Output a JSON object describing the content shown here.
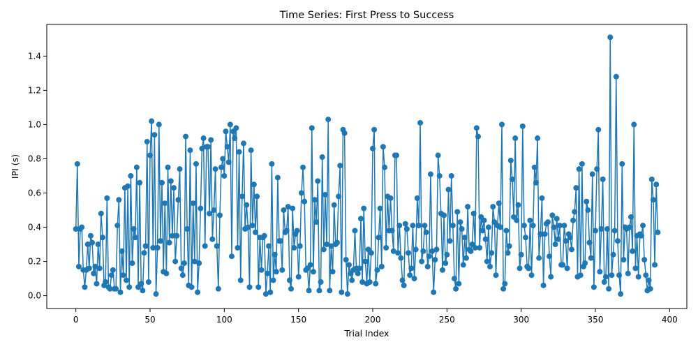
{
  "chart_data": {
    "type": "line",
    "title": "Time Series: First Press to Success",
    "xlabel": "Trial Index",
    "ylabel": "IPI (s)",
    "xlim": [
      -19.6,
      411.6
    ],
    "ylim": [
      -0.075,
      1.585
    ],
    "xticks": [
      0,
      50,
      100,
      150,
      200,
      250,
      300,
      350,
      400
    ],
    "xtick_labels": [
      "0",
      "50",
      "100",
      "150",
      "200",
      "250",
      "300",
      "350",
      "400"
    ],
    "yticks": [
      0.0,
      0.2,
      0.4,
      0.6,
      0.8,
      1.0,
      1.2,
      1.4
    ],
    "ytick_labels": [
      "0.0",
      "0.2",
      "0.4",
      "0.6",
      "0.8",
      "1.0",
      "1.2",
      "1.4"
    ],
    "grid": false,
    "legend": "none",
    "series": [
      {
        "color": "#1f77b4",
        "marker": "circle",
        "x_start": 0,
        "x_step": 1,
        "values": [
          0.39,
          0.77,
          0.17,
          0.39,
          0.4,
          0.15,
          0.05,
          0.15,
          0.3,
          0.16,
          0.35,
          0.31,
          0.13,
          0.17,
          0.07,
          0.3,
          0.16,
          0.48,
          0.34,
          0.06,
          0.08,
          0.57,
          0.05,
          0.04,
          0.12,
          0.15,
          0.04,
          0.04,
          0.41,
          0.56,
          0.02,
          0.26,
          0.12,
          0.63,
          0.09,
          0.64,
          0.05,
          0.7,
          0.19,
          0.39,
          0.34,
          0.75,
          0.05,
          0.66,
          0.07,
          0.03,
          0.25,
          0.29,
          0.9,
          0.08,
          0.82,
          1.02,
          0.28,
          0.94,
          0.01,
          0.28,
          1.0,
          0.32,
          0.66,
          0.14,
          0.54,
          0.13,
          0.75,
          0.31,
          0.67,
          0.35,
          0.63,
          0.2,
          0.35,
          0.56,
          0.74,
          0.16,
          0.12,
          0.19,
          0.93,
          0.39,
          0.06,
          0.85,
          0.05,
          0.54,
          0.2,
          0.77,
          0.02,
          0.19,
          0.51,
          0.86,
          0.92,
          0.29,
          0.87,
          0.87,
          0.48,
          0.91,
          0.33,
          0.5,
          0.74,
          0.29,
          0.04,
          0.47,
          0.75,
          0.8,
          0.7,
          0.96,
          0.87,
          0.78,
          1.0,
          0.23,
          0.96,
          0.92,
          0.98,
          0.28,
          0.84,
          0.09,
          0.58,
          0.89,
          0.39,
          0.53,
          0.4,
          0.05,
          0.85,
          0.41,
          0.65,
          0.37,
          0.58,
          0.05,
          0.34,
          0.15,
          0.34,
          0.35,
          0.01,
          0.13,
          0.29,
          0.02,
          0.77,
          0.09,
          0.24,
          0.14,
          0.69,
          0.32,
          0.32,
          0.15,
          0.5,
          0.37,
          0.38,
          0.52,
          0.09,
          0.04,
          0.51,
          0.28,
          0.36,
          0.38,
          0.11,
          0.29,
          0.6,
          0.75,
          0.55,
          0.15,
          0.16,
          0.03,
          0.18,
          0.98,
          0.14,
          0.56,
          0.43,
          0.67,
          0.03,
          0.08,
          0.81,
          0.27,
          0.59,
          0.3,
          1.03,
          0.03,
          0.29,
          0.14,
          0.53,
          0.3,
          0.31,
          0.58,
          0.76,
          0.02,
          0.97,
          0.95,
          0.21,
          0.01,
          0.18,
          0.13,
          0.09,
          0.15,
          0.38,
          0.16,
          0.13,
          0.16,
          0.45,
          0.08,
          0.51,
          0.2,
          0.07,
          0.27,
          0.08,
          0.25,
          0.86,
          0.97,
          0.07,
          0.15,
          0.34,
          0.51,
          0.17,
          0.87,
          0.75,
          0.28,
          0.58,
          0.38,
          0.57,
          0.38,
          0.26,
          0.82,
          0.82,
          0.25,
          0.41,
          0.22,
          0.09,
          0.06,
          0.42,
          0.39,
          0.25,
          0.12,
          0.16,
          0.41,
          0.1,
          0.27,
          0.57,
          0.41,
          1.01,
          0.2,
          0.26,
          0.41,
          0.37,
          0.17,
          0.23,
          0.71,
          0.26,
          0.02,
          0.21,
          0.27,
          0.82,
          0.7,
          0.48,
          0.15,
          0.47,
          0.19,
          0.24,
          0.62,
          0.32,
          0.7,
          0.41,
          0.1,
          0.04,
          0.49,
          0.07,
          0.43,
          0.39,
          0.18,
          0.34,
          0.22,
          0.52,
          0.27,
          0.26,
          0.3,
          0.48,
          0.28,
          0.98,
          0.93,
          0.28,
          0.46,
          0.38,
          0.44,
          0.33,
          0.2,
          0.4,
          0.17,
          0.25,
          0.52,
          0.43,
          0.12,
          0.41,
          0.54,
          0.4,
          1.0,
          0.04,
          0.07,
          0.38,
          0.25,
          0.29,
          0.79,
          0.68,
          0.46,
          0.92,
          0.44,
          0.53,
          0.16,
          0.24,
          0.99,
          0.41,
          0.34,
          0.17,
          0.16,
          0.44,
          0.12,
          0.41,
          0.75,
          0.66,
          0.92,
          0.22,
          0.36,
          0.57,
          0.06,
          0.36,
          0.42,
          0.43,
          0.23,
          0.11,
          0.47,
          0.4,
          0.3,
          0.45,
          0.33,
          0.41,
          0.18,
          0.18,
          0.41,
          0.32,
          0.16,
          0.36,
          0.34,
          0.27,
          0.44,
          0.49,
          0.63,
          0.11,
          0.74,
          0.12,
          0.77,
          0.17,
          0.19,
          0.55,
          0.5,
          0.31,
          0.22,
          0.71,
          0.05,
          0.38,
          0.74,
          0.97,
          0.14,
          0.39,
          0.68,
          0.08,
          0.11,
          0.39,
          0.04,
          1.51,
          0.12,
          0.24,
          0.38,
          1.28,
          0.32,
          0.12,
          0.01,
          0.77,
          0.21,
          0.4,
          0.39,
          0.13,
          0.4,
          0.46,
          0.26,
          1.0,
          0.16,
          0.35,
          0.11,
          0.36,
          0.35,
          0.41,
          0.21,
          0.12,
          0.03,
          0.09,
          0.04,
          0.68,
          0.56,
          0.18,
          0.65,
          0.37
        ]
      }
    ]
  }
}
